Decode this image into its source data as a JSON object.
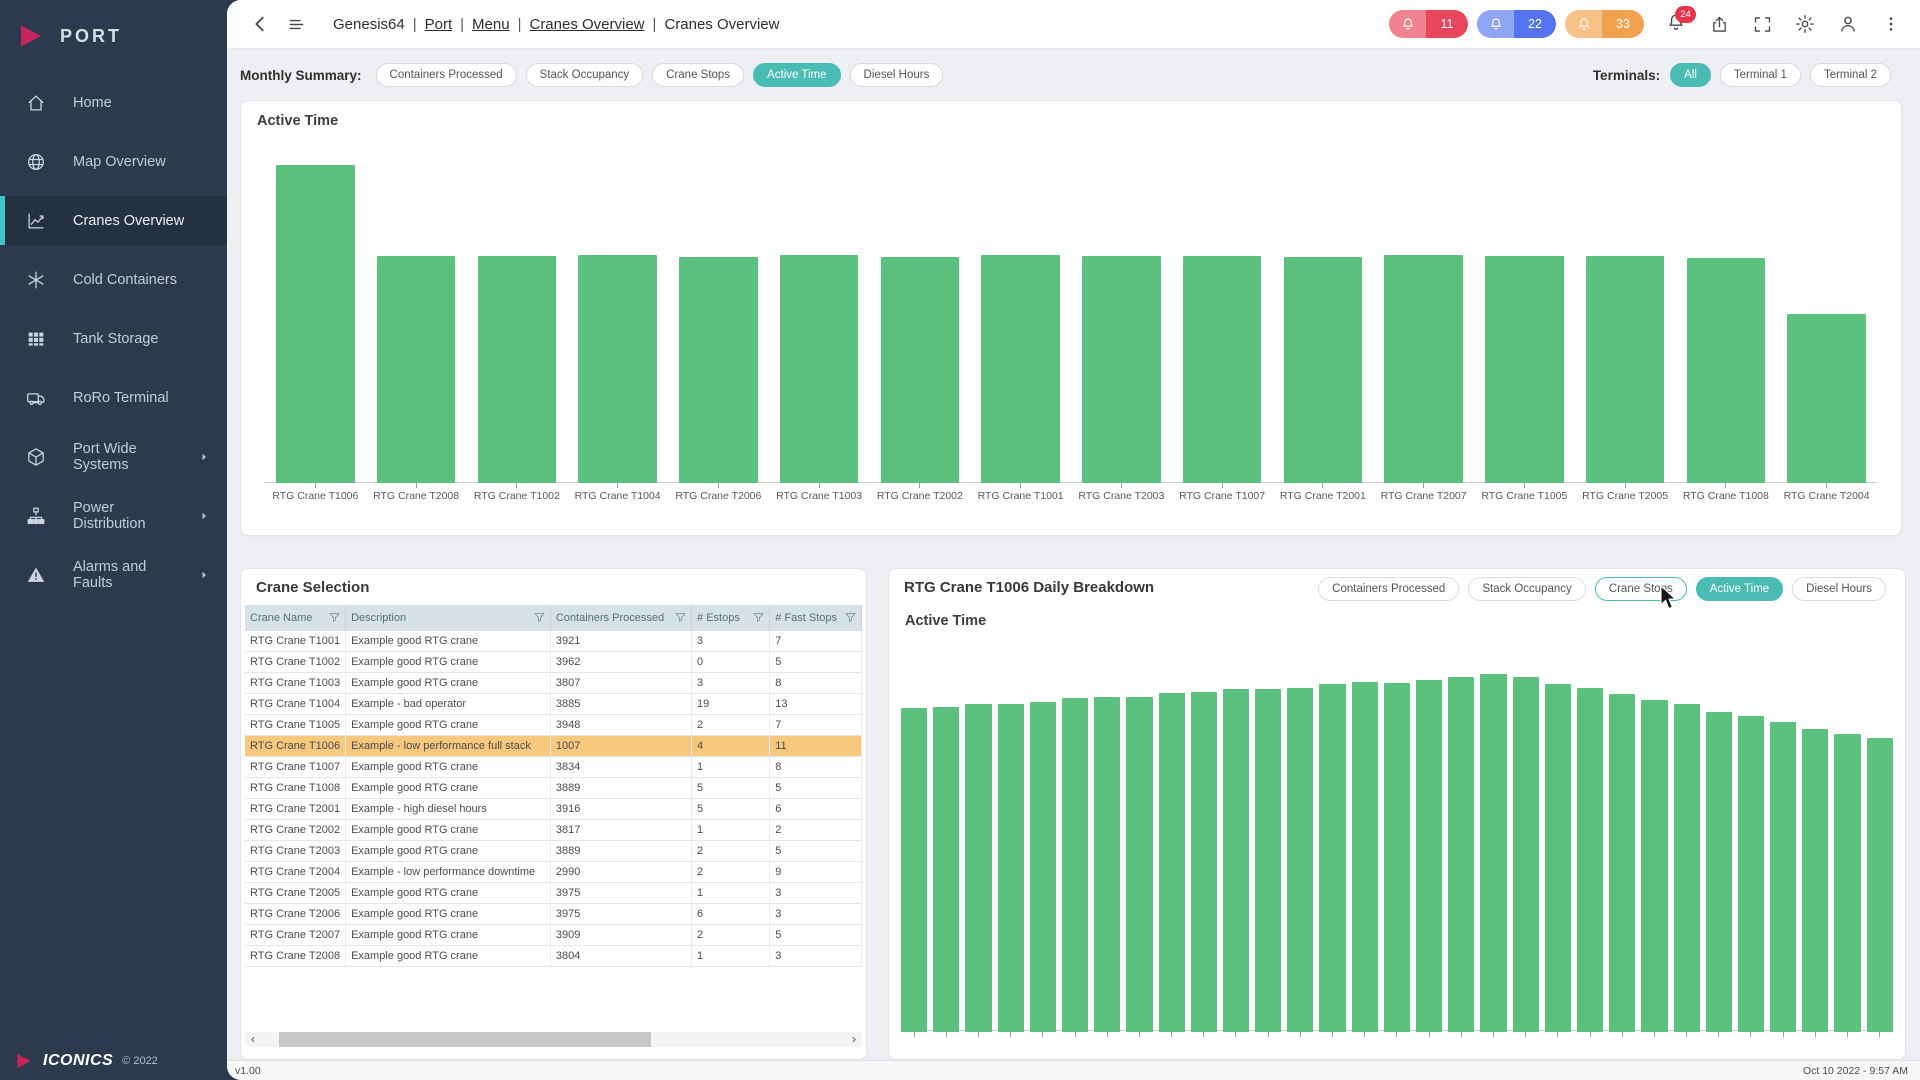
{
  "app": {
    "logo_text": "PORT",
    "brand": "ICONICS",
    "copyright": "© 2022",
    "version": "v1.00",
    "datetime": "Oct 10 2022 - 9:57 AM"
  },
  "colors": {
    "sidebar_bg": "#2d3a4e",
    "accent_teal": "#4bbcb4",
    "sidebar_active_accent": "#3ec6c6",
    "bar_green": "#5cc17e",
    "selected_row_orange": "#f8c87f",
    "alarm_red": "#e84a5f",
    "alarm_blue": "#5a77f2",
    "alarm_orange": "#f2a24d"
  },
  "header": {
    "breadcrumb_separator": "|",
    "breadcrumb_parts": [
      {
        "label": "Genesis64",
        "link": false
      },
      {
        "label": "Port",
        "link": true
      },
      {
        "label": "Menu",
        "link": true
      },
      {
        "label": "Cranes Overview",
        "link": true
      },
      {
        "label": "Cranes Overview",
        "link": false
      }
    ],
    "alarm_pills": [
      {
        "name": "red-alarm-pill",
        "count": "11",
        "solid": "#e8465c",
        "light": "#f0818f"
      },
      {
        "name": "blue-alarm-pill",
        "count": "22",
        "solid": "#5573f0",
        "light": "#91a5f7"
      },
      {
        "name": "orange-alarm-pill",
        "count": "33",
        "solid": "#f2a24d",
        "light": "#f6c287"
      }
    ],
    "bell_badge_count": "24"
  },
  "sidebar": {
    "items": [
      {
        "label": "Home",
        "icon": "home",
        "active": false,
        "submenu": false
      },
      {
        "label": "Map Overview",
        "icon": "globe",
        "active": false,
        "submenu": false
      },
      {
        "label": "Cranes Overview",
        "icon": "line-chart",
        "active": true,
        "submenu": false
      },
      {
        "label": "Cold Containers",
        "icon": "snowflake",
        "active": false,
        "submenu": false
      },
      {
        "label": "Tank Storage",
        "icon": "grid",
        "active": false,
        "submenu": false
      },
      {
        "label": "RoRo Terminal",
        "icon": "truck",
        "active": false,
        "submenu": false
      },
      {
        "label": "Port Wide Systems",
        "icon": "cube",
        "active": false,
        "submenu": true
      },
      {
        "label": "Power Distribution",
        "icon": "sitemap",
        "active": false,
        "submenu": true
      },
      {
        "label": "Alarms and Faults",
        "icon": "warning",
        "active": false,
        "submenu": true
      }
    ]
  },
  "summary_bar": {
    "label": "Monthly Summary:",
    "chips": [
      {
        "label": "Containers Processed",
        "active": false
      },
      {
        "label": "Stack Occupancy",
        "active": false
      },
      {
        "label": "Crane Stops",
        "active": false
      },
      {
        "label": "Active Time",
        "active": true
      },
      {
        "label": "Diesel Hours",
        "active": false
      }
    ],
    "terminals_label": "Terminals:",
    "terminal_chips": [
      {
        "label": "All",
        "active": true
      },
      {
        "label": "Terminal 1",
        "active": false
      },
      {
        "label": "Terminal 2",
        "active": false
      }
    ]
  },
  "crane_table": {
    "title": "Crane Selection",
    "columns": [
      "Crane Name",
      "Description",
      "Containers Processed",
      "# Estops",
      "# Fast Stops"
    ],
    "selected_row": "RTG Crane T1006",
    "rows": [
      [
        "RTG Crane T1001",
        "Example good RTG crane",
        "3921",
        "3",
        "7"
      ],
      [
        "RTG Crane T1002",
        "Example good RTG crane",
        "3962",
        "0",
        "5"
      ],
      [
        "RTG Crane T1003",
        "Example good RTG crane",
        "3807",
        "3",
        "8"
      ],
      [
        "RTG Crane T1004",
        "Example - bad operator",
        "3885",
        "19",
        "13"
      ],
      [
        "RTG Crane T1005",
        "Example good RTG crane",
        "3948",
        "2",
        "7"
      ],
      [
        "RTG Crane T1006",
        "Example - low performance full stack",
        "1007",
        "4",
        "11"
      ],
      [
        "RTG Crane T1007",
        "Example good RTG crane",
        "3834",
        "1",
        "8"
      ],
      [
        "RTG Crane T1008",
        "Example good RTG crane",
        "3889",
        "5",
        "5"
      ],
      [
        "RTG Crane T2001",
        "Example - high diesel hours",
        "3916",
        "5",
        "6"
      ],
      [
        "RTG Crane T2002",
        "Example good RTG crane",
        "3817",
        "1",
        "2"
      ],
      [
        "RTG Crane T2003",
        "Example good RTG crane",
        "3889",
        "2",
        "5"
      ],
      [
        "RTG Crane T2004",
        "Example - low performance downtime",
        "2990",
        "2",
        "9"
      ],
      [
        "RTG Crane T2005",
        "Example good RTG crane",
        "3975",
        "1",
        "3"
      ],
      [
        "RTG Crane T2006",
        "Example good RTG crane",
        "3975",
        "6",
        "3"
      ],
      [
        "RTG Crane T2007",
        "Example good RTG crane",
        "3909",
        "2",
        "5"
      ],
      [
        "RTG Crane T2008",
        "Example good RTG crane",
        "3804",
        "1",
        "3"
      ]
    ]
  },
  "daily_panel": {
    "title": "RTG Crane T1006 Daily Breakdown",
    "chips": [
      {
        "label": "Containers Processed",
        "active": false,
        "hover": false
      },
      {
        "label": "Stack Occupancy",
        "active": false,
        "hover": false
      },
      {
        "label": "Crane Stops",
        "active": false,
        "hover": true
      },
      {
        "label": "Active Time",
        "active": true,
        "hover": false
      },
      {
        "label": "Diesel Hours",
        "active": false,
        "hover": false
      }
    ]
  },
  "chart_data": [
    {
      "type": "bar",
      "title": "Active Time",
      "context": "Monthly Summary - all cranes",
      "color": "#5cc17e",
      "y_axis_visible": false,
      "units": "relative height, % of tallest bar (no axis labels shown)",
      "ylim": [
        0,
        100
      ],
      "categories": [
        "RTG Crane T1006",
        "RTG Crane T2008",
        "RTG Crane T1002",
        "RTG Crane T1004",
        "RTG Crane T2006",
        "RTG Crane T1003",
        "RTG Crane T2002",
        "RTG Crane T1001",
        "RTG Crane T2003",
        "RTG Crane T1007",
        "RTG Crane T2001",
        "RTG Crane T2007",
        "RTG Crane T1005",
        "RTG Crane T2005",
        "RTG Crane T1008",
        "RTG Crane T2004"
      ],
      "values": [
        100,
        71.5,
        71.3,
        71.6,
        71.2,
        71.7,
        71.1,
        71.6,
        71.3,
        71.5,
        71.2,
        71.6,
        71.3,
        71.4,
        70.8,
        53
      ]
    },
    {
      "type": "bar",
      "title": "Active Time",
      "context": "RTG Crane T1006 Daily Breakdown - one bar per day, x labels not visible",
      "color": "#5cc17e",
      "y_axis_visible": false,
      "x_labels_visible": false,
      "units": "relative height, % of tallest bar (no axis labels shown)",
      "ylim": [
        0,
        100
      ],
      "categories": [
        "1",
        "2",
        "3",
        "4",
        "5",
        "6",
        "7",
        "8",
        "9",
        "10",
        "11",
        "12",
        "13",
        "14",
        "15",
        "16",
        "17",
        "18",
        "19",
        "20",
        "21",
        "22",
        "23",
        "24",
        "25",
        "26",
        "27",
        "28",
        "29",
        "30",
        "31"
      ],
      "values": [
        90.4,
        90.8,
        91.5,
        91.7,
        92.3,
        93.2,
        93.6,
        93.7,
        94.6,
        95.0,
        95.7,
        95.9,
        96.1,
        97.3,
        97.7,
        97.6,
        98.2,
        99.3,
        100,
        99.1,
        97.2,
        96.2,
        94.4,
        92.8,
        91.5,
        89.4,
        88.3,
        86.5,
        84.5,
        83.3,
        82.2
      ]
    }
  ]
}
